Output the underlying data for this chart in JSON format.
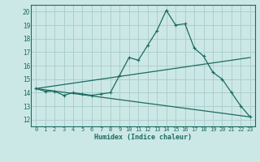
{
  "title": "",
  "xlabel": "Humidex (Indice chaleur)",
  "ylabel": "",
  "bg_color": "#cce8e6",
  "grid_color": "#aacfcd",
  "line_color": "#1a6b60",
  "xlim": [
    -0.5,
    23.5
  ],
  "ylim": [
    11.5,
    20.5
  ],
  "xticks": [
    0,
    1,
    2,
    3,
    4,
    5,
    6,
    7,
    8,
    9,
    10,
    11,
    12,
    13,
    14,
    15,
    16,
    17,
    18,
    19,
    20,
    21,
    22,
    23
  ],
  "yticks": [
    12,
    13,
    14,
    15,
    16,
    17,
    18,
    19,
    20
  ],
  "series": [
    {
      "x": [
        0,
        1,
        2,
        3,
        4,
        5,
        6,
        7,
        8,
        9,
        10,
        11,
        12,
        13,
        14,
        15,
        16,
        17,
        18,
        19,
        20,
        21,
        22,
        23
      ],
      "y": [
        14.3,
        14.1,
        14.1,
        13.8,
        14.0,
        13.9,
        13.8,
        13.9,
        14.0,
        15.3,
        16.6,
        16.4,
        17.5,
        18.6,
        20.1,
        19.0,
        19.1,
        17.3,
        16.7,
        15.5,
        15.0,
        14.0,
        13.0,
        12.2
      ],
      "marker": "+"
    },
    {
      "x": [
        0,
        23
      ],
      "y": [
        14.3,
        16.6
      ],
      "marker": null
    },
    {
      "x": [
        0,
        23
      ],
      "y": [
        14.3,
        12.2
      ],
      "marker": null
    }
  ],
  "figsize": [
    3.2,
    2.0
  ],
  "dpi": 100
}
